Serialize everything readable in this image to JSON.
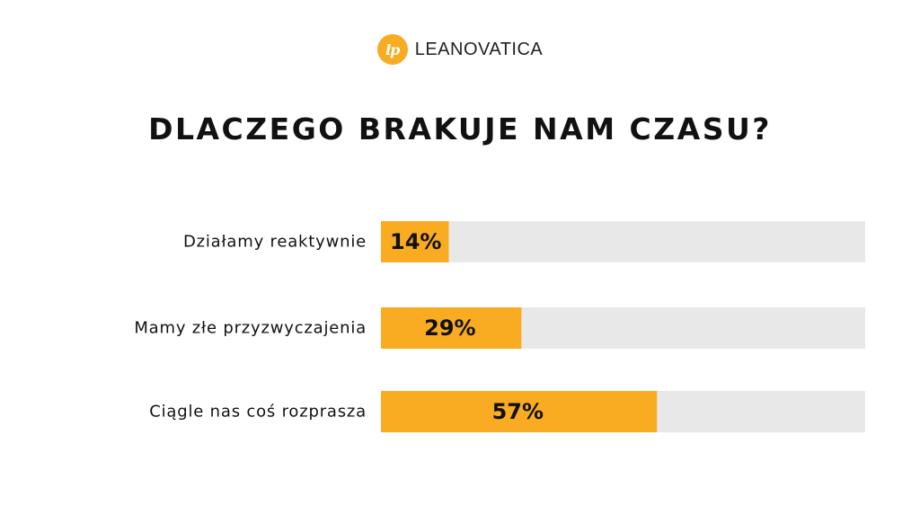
{
  "brand": {
    "name": "LEANOVATICA",
    "logo_text": "lp",
    "color": "#f9ab22"
  },
  "chart_data": {
    "type": "bar",
    "orientation": "horizontal",
    "title": "DLACZEGO BRAKUJE NAM CZASU?",
    "categories": [
      "Działamy reaktywnie",
      "Mamy złe przyzwyczajenia",
      "Ciągle nas coś rozprasza"
    ],
    "values": [
      14,
      29,
      57
    ],
    "value_labels": [
      "14%",
      "29%",
      "57%"
    ],
    "xlim": [
      0,
      100
    ],
    "bar_color": "#f9ab22",
    "track_color": "#e8e8e8",
    "grid": false,
    "legend": "none"
  }
}
